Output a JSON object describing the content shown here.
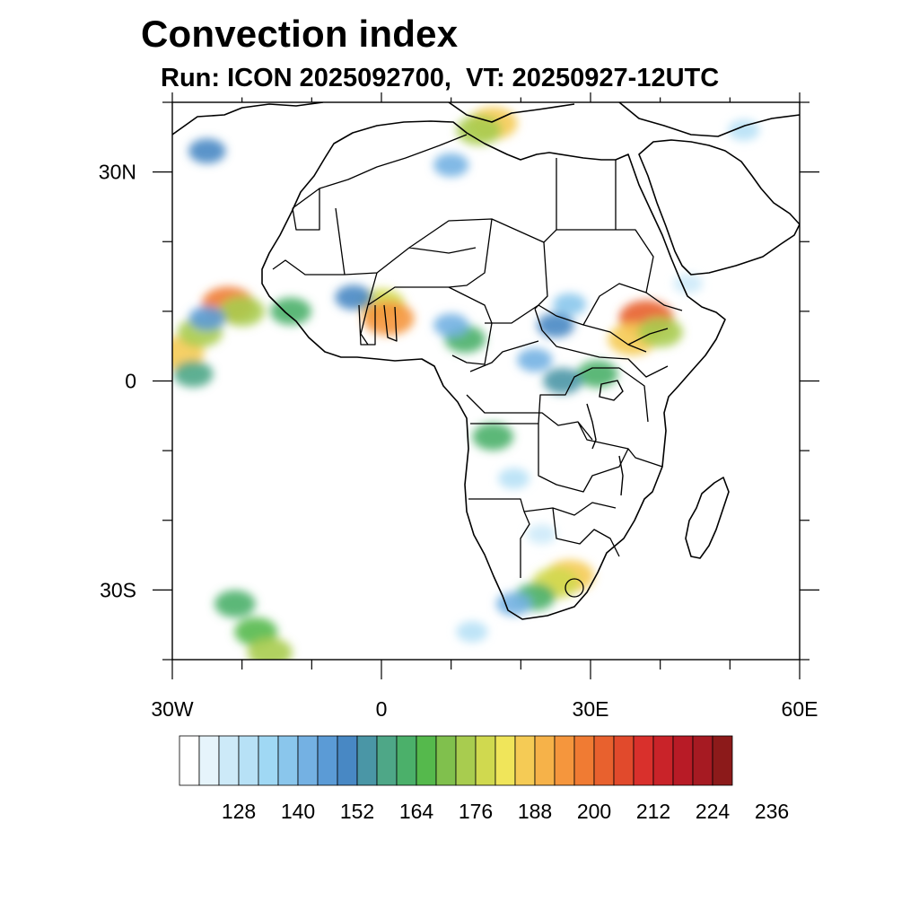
{
  "title": "Convection index",
  "subtitle": "Run: ICON 2025092700,  VT: 20250927-12UTC",
  "map": {
    "region": "Africa",
    "extent": {
      "lon": [
        -30,
        60
      ],
      "lat": [
        -40,
        40
      ]
    },
    "x_ticks": [
      {
        "lon": -30,
        "label": "30W"
      },
      {
        "lon": 0,
        "label": "0"
      },
      {
        "lon": 30,
        "label": "30E"
      },
      {
        "lon": 60,
        "label": "60E"
      }
    ],
    "y_ticks": [
      {
        "lat": 30,
        "label": "30N"
      },
      {
        "lat": 0,
        "label": "0"
      },
      {
        "lat": -30,
        "label": "30S"
      }
    ],
    "minor_tick_step_deg": 10
  },
  "colorbar": {
    "colors": [
      "#ffffff",
      "#e6f4fb",
      "#cdeaf8",
      "#b7e1f6",
      "#a0d8f4",
      "#8ac6ec",
      "#74b1e3",
      "#5b9bd6",
      "#4888c4",
      "#4a96a6",
      "#4ea787",
      "#4bb06a",
      "#55b94c",
      "#80c04d",
      "#a8cc4f",
      "#d0d94f",
      "#f0e55a",
      "#f5cb55",
      "#f6b249",
      "#f5963d",
      "#f07b33",
      "#e8612e",
      "#e14a2c",
      "#d9302c",
      "#c92329",
      "#b81b26",
      "#a61a22",
      "#8c1a1a"
    ],
    "labels": [
      "128",
      "140",
      "152",
      "164",
      "176",
      "188",
      "200",
      "212",
      "224",
      "236"
    ]
  },
  "chart_data": {
    "type": "heatmap",
    "variable": "Convection index",
    "model_run": "ICON 2025092700",
    "valid_time": "20250927-12UTC",
    "x_range": [
      -30,
      60
    ],
    "y_range": [
      -40,
      40
    ],
    "level_labels": [
      "128",
      "140",
      "152",
      "164",
      "176",
      "188",
      "200",
      "212",
      "224",
      "236"
    ],
    "cells": [
      {
        "lon": -29,
        "lat": 4,
        "value": 190
      },
      {
        "lon": -26,
        "lat": 7,
        "value": 176
      },
      {
        "lon": -27,
        "lat": 1,
        "value": 160
      },
      {
        "lon": -22,
        "lat": 11,
        "value": 200
      },
      {
        "lon": -20,
        "lat": 10,
        "value": 176
      },
      {
        "lon": -25,
        "lat": 9,
        "value": 150
      },
      {
        "lon": -13,
        "lat": 10,
        "value": 164
      },
      {
        "lon": 0,
        "lat": 11,
        "value": 182
      },
      {
        "lon": 1,
        "lat": 9,
        "value": 196
      },
      {
        "lon": -4,
        "lat": 12,
        "value": 152
      },
      {
        "lon": 12,
        "lat": 6,
        "value": 164
      },
      {
        "lon": 10,
        "lat": 8,
        "value": 146
      },
      {
        "lon": 25,
        "lat": 8,
        "value": 152
      },
      {
        "lon": 27,
        "lat": 11,
        "value": 140
      },
      {
        "lon": 38,
        "lat": 9,
        "value": 205
      },
      {
        "lon": 36,
        "lat": 6,
        "value": 188
      },
      {
        "lon": 40,
        "lat": 7,
        "value": 176
      },
      {
        "lon": 31,
        "lat": 1,
        "value": 164
      },
      {
        "lon": 26,
        "lat": 0,
        "value": 158
      },
      {
        "lon": 22,
        "lat": 3,
        "value": 146
      },
      {
        "lon": 16,
        "lat": -8,
        "value": 164
      },
      {
        "lon": 19,
        "lat": -14,
        "value": 134
      },
      {
        "lon": 23,
        "lat": -22,
        "value": 128
      },
      {
        "lon": 27,
        "lat": -28,
        "value": 188
      },
      {
        "lon": 25,
        "lat": -29,
        "value": 182
      },
      {
        "lon": 22,
        "lat": -31,
        "value": 164
      },
      {
        "lon": 19,
        "lat": -32,
        "value": 146
      },
      {
        "lon": 13,
        "lat": -36,
        "value": 134
      },
      {
        "lon": -21,
        "lat": -32,
        "value": 164
      },
      {
        "lon": -18,
        "lat": -36,
        "value": 170
      },
      {
        "lon": -16,
        "lat": -39,
        "value": 176
      },
      {
        "lon": 16,
        "lat": 37,
        "value": 188
      },
      {
        "lon": 14,
        "lat": 36,
        "value": 176
      },
      {
        "lon": 10,
        "lat": 31,
        "value": 146
      },
      {
        "lon": -25,
        "lat": 33,
        "value": 152
      },
      {
        "lon": 44,
        "lat": 14,
        "value": 128
      },
      {
        "lon": 52,
        "lat": 36,
        "value": 134
      }
    ]
  }
}
